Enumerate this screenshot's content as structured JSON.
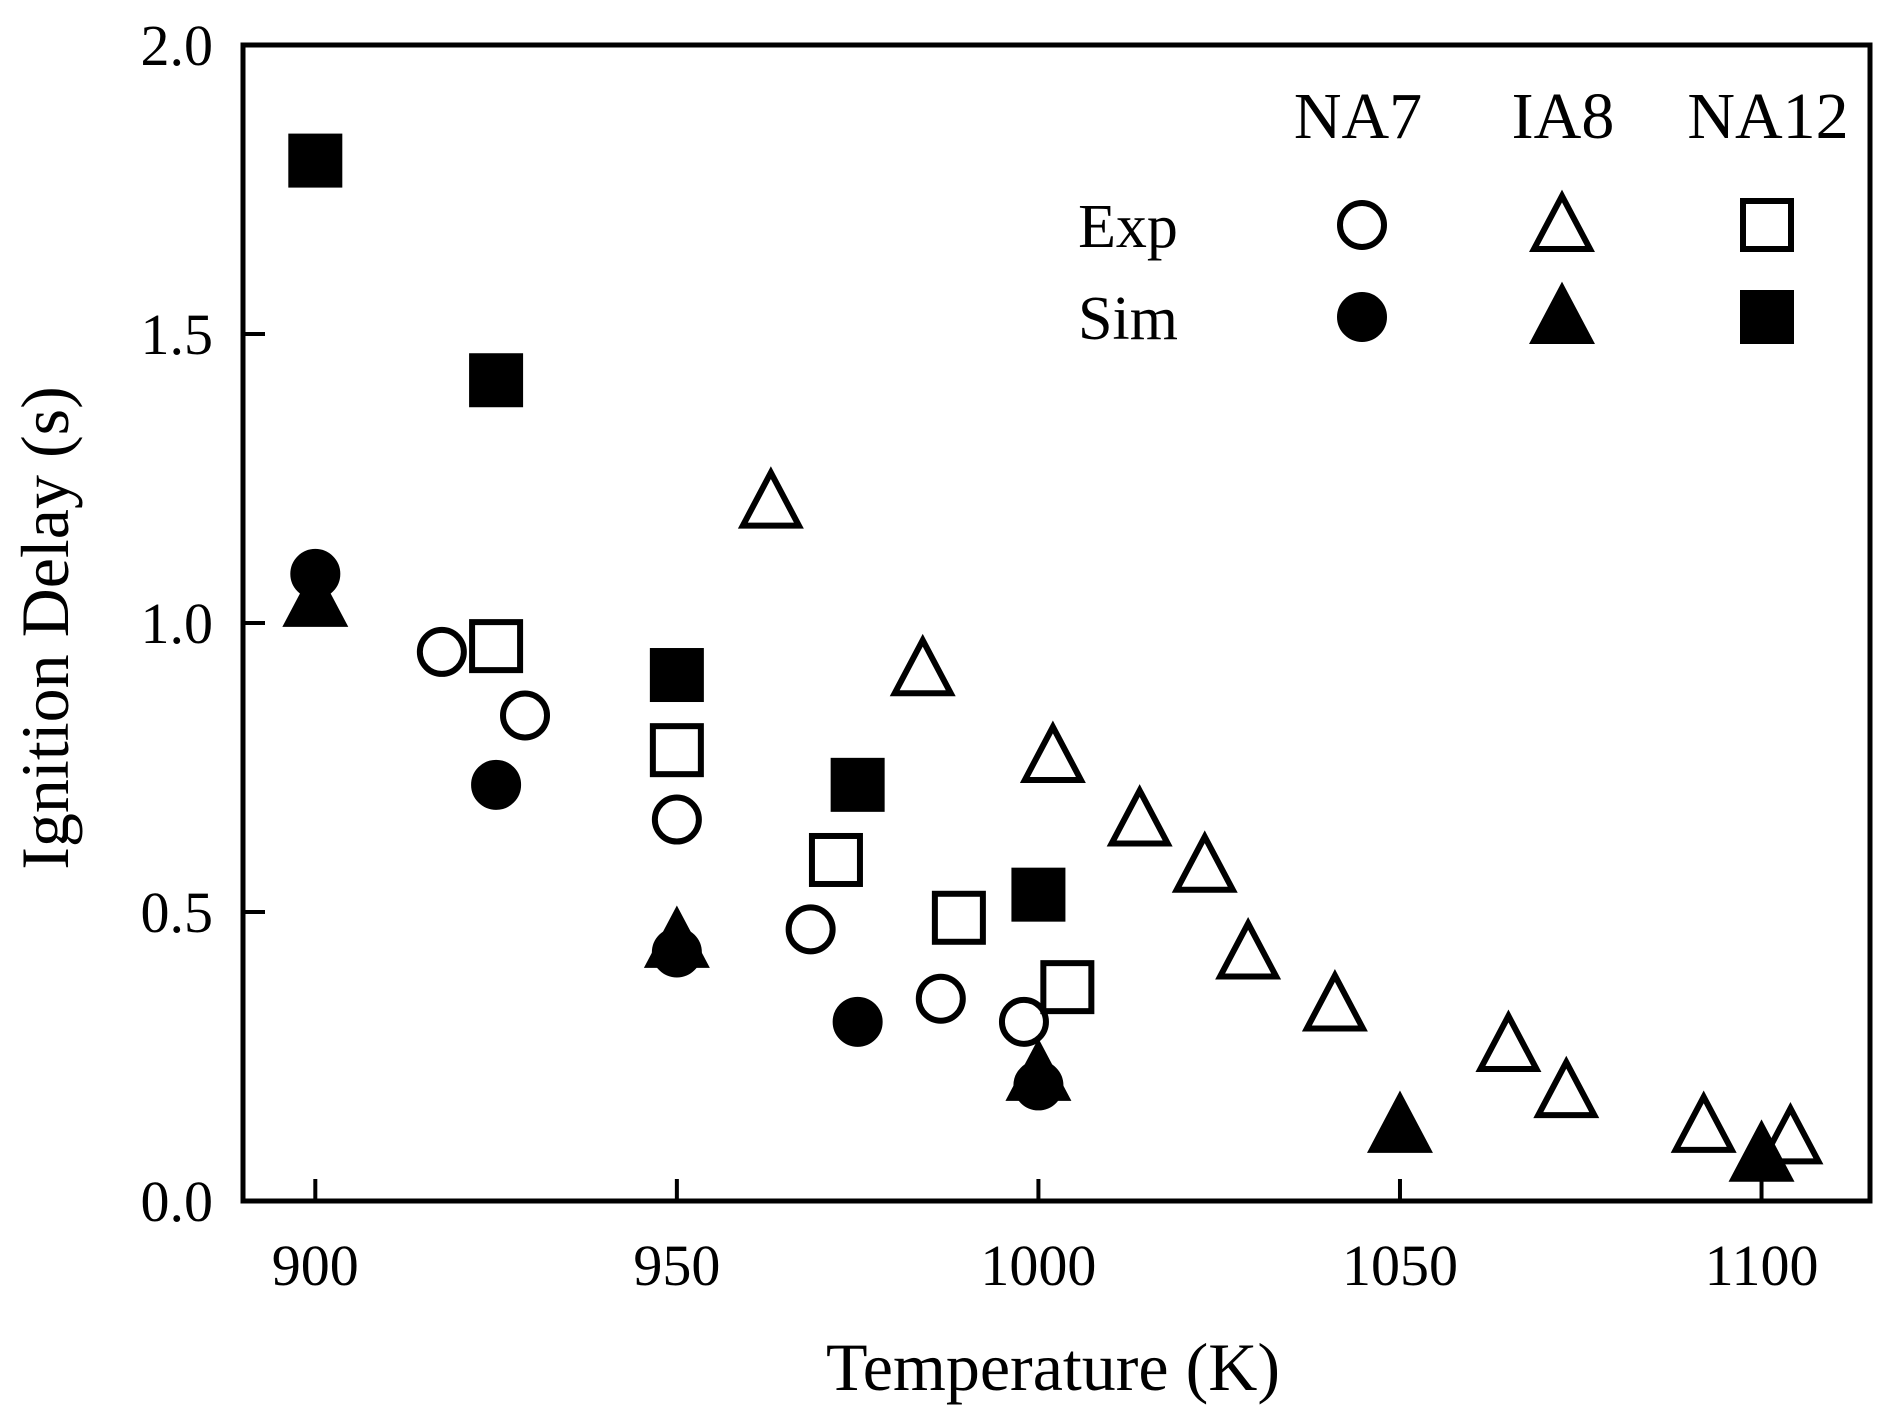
{
  "chart_data": {
    "type": "scatter",
    "xlabel": "Temperature (K)",
    "ylabel": "Ignition Delay (s)",
    "xlim": [
      890,
      1115
    ],
    "ylim": [
      0,
      2.0
    ],
    "xticks": [
      900,
      950,
      1000,
      1050,
      1100
    ],
    "xtick_labels": [
      "900",
      "950",
      "1000",
      "1050",
      "1100"
    ],
    "yticks": [
      0,
      0.5,
      1.0,
      1.5,
      2.0
    ],
    "ytick_labels": [
      "0.0",
      "0.5",
      "1.0",
      "1.5",
      "2.0"
    ],
    "grid": false,
    "legend": {
      "placement": "top-right",
      "columns": [
        "NA7",
        "IA8",
        "NA12"
      ],
      "rows": [
        "Exp",
        "Sim"
      ]
    },
    "series": [
      {
        "fuel": "NA7",
        "kind": "Exp",
        "marker": "circle",
        "filled": false,
        "points": [
          [
            917.5,
            0.95
          ],
          [
            929,
            0.84
          ],
          [
            950,
            0.66
          ],
          [
            968.5,
            0.47
          ],
          [
            986.5,
            0.35
          ],
          [
            998,
            0.31
          ]
        ]
      },
      {
        "fuel": "NA7",
        "kind": "Sim",
        "marker": "circle",
        "filled": true,
        "points": [
          [
            900,
            1.085
          ],
          [
            925,
            0.72
          ],
          [
            950,
            0.43
          ],
          [
            975,
            0.31
          ],
          [
            1000,
            0.2
          ]
        ]
      },
      {
        "fuel": "IA8",
        "kind": "Exp",
        "marker": "triangle",
        "filled": false,
        "points": [
          [
            963,
            1.21
          ],
          [
            984,
            0.92
          ],
          [
            1002,
            0.77
          ],
          [
            1014,
            0.66
          ],
          [
            1023,
            0.58
          ],
          [
            1029,
            0.43
          ],
          [
            1041,
            0.34
          ],
          [
            1065,
            0.27
          ],
          [
            1073,
            0.19
          ],
          [
            1092,
            0.13
          ],
          [
            1104,
            0.11
          ]
        ]
      },
      {
        "fuel": "IA8",
        "kind": "Sim",
        "marker": "triangle",
        "filled": true,
        "points": [
          [
            900,
            1.04
          ],
          [
            950,
            0.45
          ],
          [
            1000,
            0.22
          ],
          [
            1050,
            0.13
          ],
          [
            1100,
            0.08
          ]
        ]
      },
      {
        "fuel": "NA12",
        "kind": "Exp",
        "marker": "square",
        "filled": false,
        "points": [
          [
            925,
            0.96
          ],
          [
            950,
            0.78
          ],
          [
            972,
            0.59
          ],
          [
            989,
            0.49
          ],
          [
            1004,
            0.37
          ]
        ]
      },
      {
        "fuel": "NA12",
        "kind": "Sim",
        "marker": "square",
        "filled": true,
        "points": [
          [
            900,
            1.8
          ],
          [
            925,
            1.42
          ],
          [
            950,
            0.91
          ],
          [
            975,
            0.72
          ],
          [
            1000,
            0.53
          ]
        ]
      }
    ]
  }
}
